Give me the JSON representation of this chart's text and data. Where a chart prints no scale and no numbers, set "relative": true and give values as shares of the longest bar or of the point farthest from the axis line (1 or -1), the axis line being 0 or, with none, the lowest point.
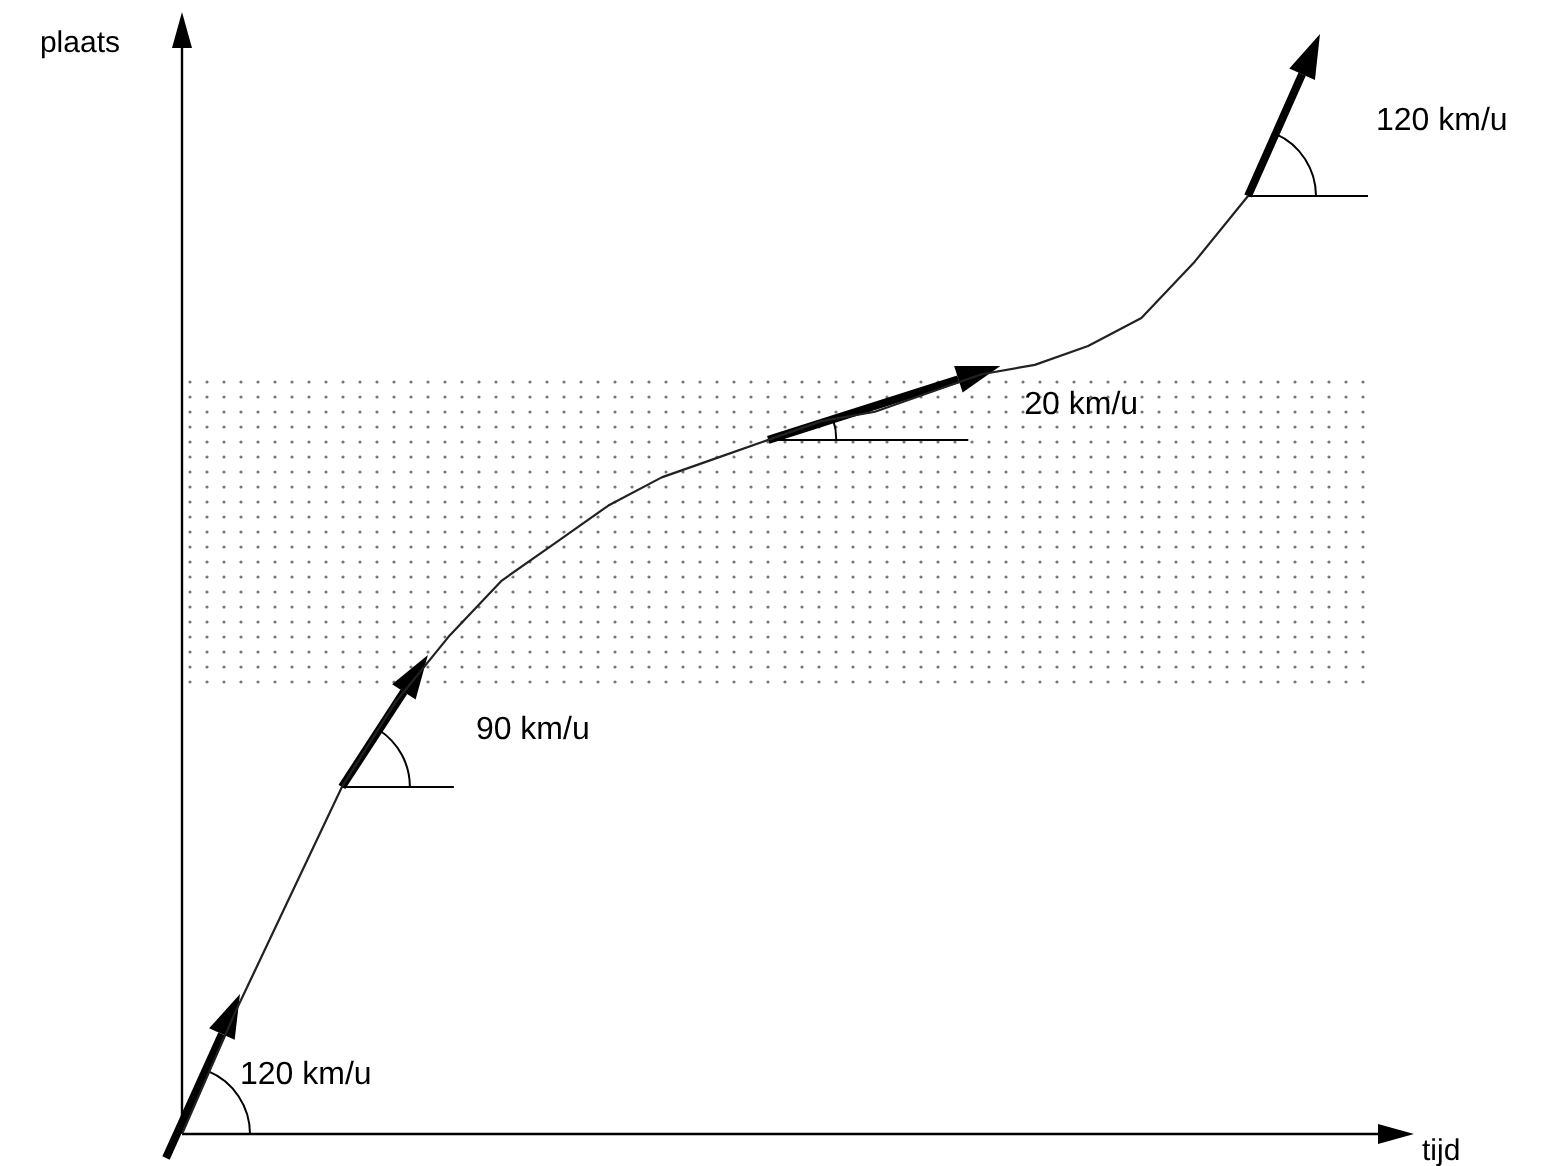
{
  "chart_data": {
    "type": "line",
    "relative": true,
    "xlabel": "tijd",
    "ylabel": "plaats",
    "categories": [
      null,
      null,
      null,
      null,
      null,
      null,
      null,
      null,
      null,
      null,
      null,
      null,
      null,
      null,
      null,
      null,
      null,
      null,
      null,
      null,
      null
    ],
    "series": [
      {
        "color": "#222222",
        "values": [
          0,
          0.13,
          0.25,
          0.37,
          0.46,
          0.53,
          0.59,
          0.63,
          0.67,
          0.7,
          0.72,
          0.74,
          0.76,
          0.77,
          0.79,
          0.81,
          0.82,
          0.84,
          0.87,
          0.93,
          1
        ]
      }
    ],
    "bands": [
      {
        "axis": "y",
        "from": 0.48,
        "to": 0.81,
        "color": "#777777"
      }
    ],
    "annotations": [
      "120 km/u",
      "90 km/u",
      "20 km/u",
      "120 km/u"
    ],
    "marker": "none",
    "line_style": "solid"
  }
}
